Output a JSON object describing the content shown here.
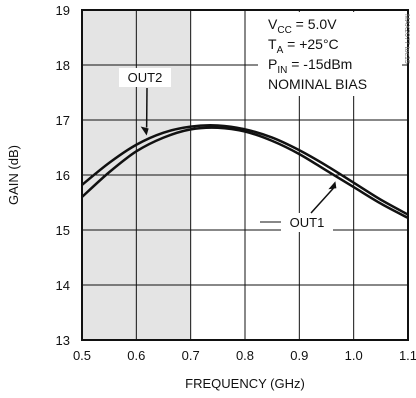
{
  "chart_data": {
    "type": "line",
    "xlabel": "FREQUENCY (GHz)",
    "ylabel": "GAIN (dB)",
    "xlim": [
      0.5,
      1.1
    ],
    "ylim": [
      13,
      19
    ],
    "xticks": [
      "0.5",
      "0.6",
      "0.7",
      "0.8",
      "0.9",
      "1.0",
      "1.1"
    ],
    "yticks": [
      "13",
      "14",
      "15",
      "16",
      "17",
      "18",
      "19"
    ],
    "grid": true,
    "shaded_region": {
      "x_from": 0.5,
      "x_to": 0.7,
      "color": "#e4e4e4"
    },
    "series": [
      {
        "name": "OUT1",
        "x": [
          0.5,
          0.55,
          0.6,
          0.65,
          0.7,
          0.75,
          0.8,
          0.85,
          0.9,
          0.95,
          1.0,
          1.05,
          1.1
        ],
        "y": [
          15.6,
          16.05,
          16.43,
          16.68,
          16.83,
          16.86,
          16.79,
          16.62,
          16.38,
          16.08,
          15.78,
          15.48,
          15.22
        ]
      },
      {
        "name": "OUT2",
        "x": [
          0.5,
          0.55,
          0.6,
          0.65,
          0.7,
          0.75,
          0.8,
          0.85,
          0.9,
          0.95,
          1.0,
          1.05,
          1.1
        ],
        "y": [
          15.82,
          16.22,
          16.55,
          16.77,
          16.88,
          16.9,
          16.83,
          16.68,
          16.45,
          16.17,
          15.86,
          15.55,
          15.28
        ]
      }
    ],
    "conditions": [
      {
        "main": "V",
        "sub": "CC",
        "rest": " = 5.0V"
      },
      {
        "main": "T",
        "sub": "A",
        "rest": " = +25°C"
      },
      {
        "main": "P",
        "sub": "IN",
        "rest": " = -15dBm"
      },
      {
        "main": "NOMINAL BIAS",
        "sub": "",
        "rest": ""
      }
    ],
    "callouts": [
      {
        "text": "OUT2",
        "series": "OUT2",
        "at_x": 0.63
      },
      {
        "text": "OUT1",
        "series": "OUT1",
        "at_x": 0.97
      }
    ],
    "watermark": "MAX2077 toc15",
    "colors": {
      "line": "#111111",
      "grid": "#111111",
      "shade": "#e4e4e4"
    }
  }
}
